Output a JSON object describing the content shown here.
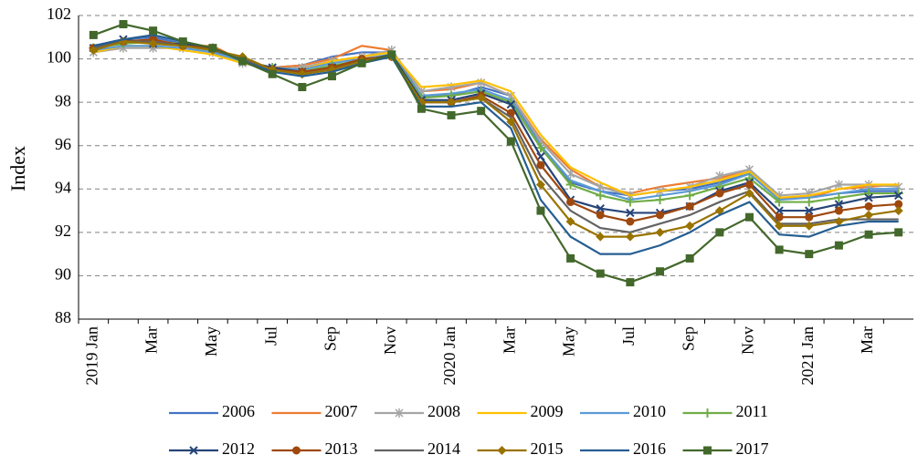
{
  "chart_data": {
    "type": "line",
    "y_label": "Index",
    "categories": [
      "2019 Jan",
      null,
      "Mar",
      null,
      "May",
      null,
      "Jul",
      null,
      "Sep",
      null,
      "Nov",
      null,
      "2020 Jan",
      null,
      "Mar",
      null,
      "May",
      null,
      "Jul",
      null,
      "Sep",
      null,
      "Nov",
      null,
      "2021 Jan",
      null,
      "Mar",
      null
    ],
    "ylim": [
      88,
      102
    ],
    "yticks": [
      88,
      90,
      92,
      94,
      96,
      98,
      100,
      102
    ],
    "grid": true,
    "legend": "bottom",
    "series": [
      {
        "name": "2006",
        "color": "#4472c4",
        "marker": "none",
        "values": [
          100.6,
          100.9,
          101.0,
          100.7,
          100.4,
          99.9,
          99.6,
          99.7,
          100.1,
          100.3,
          100.3,
          98.3,
          98.3,
          98.7,
          98.3,
          96.0,
          94.3,
          93.9,
          93.7,
          93.9,
          94.0,
          94.3,
          94.7,
          93.6,
          93.6,
          93.8,
          93.9,
          93.9
        ]
      },
      {
        "name": "2007",
        "color": "#ed7d31",
        "marker": "none",
        "values": [
          100.5,
          100.8,
          100.8,
          100.6,
          100.6,
          99.9,
          99.6,
          99.7,
          100.0,
          100.6,
          100.4,
          98.5,
          98.6,
          98.9,
          98.3,
          96.3,
          94.9,
          94.1,
          93.8,
          94.1,
          94.3,
          94.5,
          94.9,
          93.6,
          93.6,
          94.0,
          94.1,
          94.2
        ]
      },
      {
        "name": "2008",
        "color": "#a5a5a5",
        "marker": "star",
        "values": [
          100.3,
          100.5,
          100.5,
          100.5,
          100.3,
          99.8,
          99.5,
          99.6,
          99.9,
          100.1,
          100.4,
          98.5,
          98.7,
          98.9,
          98.3,
          96.2,
          94.7,
          94.1,
          93.7,
          93.9,
          94.1,
          94.6,
          94.9,
          93.7,
          93.8,
          94.2,
          94.2,
          94.1
        ]
      },
      {
        "name": "2009",
        "color": "#ffc000",
        "marker": "none",
        "values": [
          100.3,
          100.6,
          100.6,
          100.4,
          100.2,
          99.8,
          99.6,
          99.5,
          99.9,
          100.1,
          100.3,
          98.7,
          98.8,
          99.0,
          98.5,
          96.5,
          95.0,
          94.3,
          93.7,
          93.9,
          94.1,
          94.4,
          94.8,
          93.6,
          93.7,
          94.0,
          94.2,
          94.2
        ]
      },
      {
        "name": "2010",
        "color": "#5b9bd5",
        "marker": "none",
        "values": [
          100.4,
          100.6,
          100.6,
          100.5,
          100.3,
          99.9,
          99.6,
          99.5,
          99.8,
          100.0,
          100.2,
          98.3,
          98.4,
          98.6,
          98.1,
          96.0,
          94.4,
          93.9,
          93.5,
          93.7,
          93.9,
          94.2,
          94.7,
          93.5,
          93.6,
          93.8,
          94.0,
          94.0
        ]
      },
      {
        "name": "2011",
        "color": "#70ad47",
        "marker": "plus",
        "values": [
          100.5,
          100.7,
          100.8,
          100.7,
          100.5,
          99.9,
          99.6,
          99.4,
          99.7,
          99.9,
          100.2,
          98.2,
          98.3,
          98.5,
          98.0,
          95.9,
          94.2,
          93.7,
          93.4,
          93.5,
          93.7,
          94.1,
          94.5,
          93.4,
          93.4,
          93.6,
          93.8,
          93.8
        ]
      },
      {
        "name": "2012",
        "color": "#264478",
        "marker": "x",
        "values": [
          100.5,
          100.9,
          100.7,
          100.7,
          100.5,
          99.9,
          99.6,
          99.4,
          99.6,
          99.9,
          100.2,
          98.1,
          98.1,
          98.4,
          97.9,
          95.5,
          93.5,
          93.1,
          92.9,
          92.9,
          93.2,
          93.9,
          94.3,
          93.0,
          93.0,
          93.3,
          93.6,
          93.7
        ]
      },
      {
        "name": "2013",
        "color": "#9e480e",
        "marker": "circle",
        "values": [
          100.5,
          100.8,
          100.9,
          100.6,
          100.5,
          100.0,
          99.5,
          99.4,
          99.6,
          100.0,
          100.1,
          98.0,
          98.0,
          98.3,
          97.5,
          95.1,
          93.4,
          92.8,
          92.5,
          92.8,
          93.2,
          93.8,
          94.2,
          92.7,
          92.7,
          93.0,
          93.2,
          93.3
        ]
      },
      {
        "name": "2014",
        "color": "#636363",
        "marker": "none",
        "values": [
          100.5,
          100.8,
          100.8,
          100.6,
          100.4,
          100.0,
          99.5,
          99.3,
          99.5,
          99.9,
          100.1,
          98.0,
          98.0,
          98.2,
          97.3,
          94.6,
          93.0,
          92.2,
          92.0,
          92.4,
          92.8,
          93.4,
          93.9,
          92.4,
          92.4,
          92.6,
          92.6,
          92.6
        ]
      },
      {
        "name": "2015",
        "color": "#997300",
        "marker": "diamond",
        "values": [
          100.4,
          100.8,
          100.7,
          100.6,
          100.4,
          100.1,
          99.5,
          99.3,
          99.5,
          99.9,
          100.1,
          98.0,
          98.0,
          98.2,
          97.1,
          94.2,
          92.5,
          91.8,
          91.8,
          92.0,
          92.3,
          93.0,
          93.8,
          92.3,
          92.3,
          92.5,
          92.8,
          93.0
        ]
      },
      {
        "name": "2016",
        "color": "#255e91",
        "marker": "none",
        "values": [
          100.6,
          100.9,
          101.1,
          100.8,
          100.5,
          99.9,
          99.4,
          99.2,
          99.4,
          99.8,
          100.1,
          97.8,
          97.8,
          98.0,
          96.8,
          93.5,
          91.8,
          91.0,
          91.0,
          91.4,
          92.0,
          92.8,
          93.4,
          91.9,
          91.8,
          92.3,
          92.5,
          92.5
        ]
      },
      {
        "name": "2017",
        "color": "#43682b",
        "marker": "square",
        "values": [
          101.1,
          101.6,
          101.3,
          100.8,
          100.5,
          99.9,
          99.3,
          98.7,
          99.2,
          99.8,
          100.2,
          97.7,
          97.4,
          97.6,
          96.2,
          93.0,
          90.8,
          90.1,
          89.7,
          90.2,
          90.8,
          92.0,
          92.7,
          91.2,
          91.0,
          91.4,
          91.9,
          92.0
        ]
      }
    ]
  }
}
